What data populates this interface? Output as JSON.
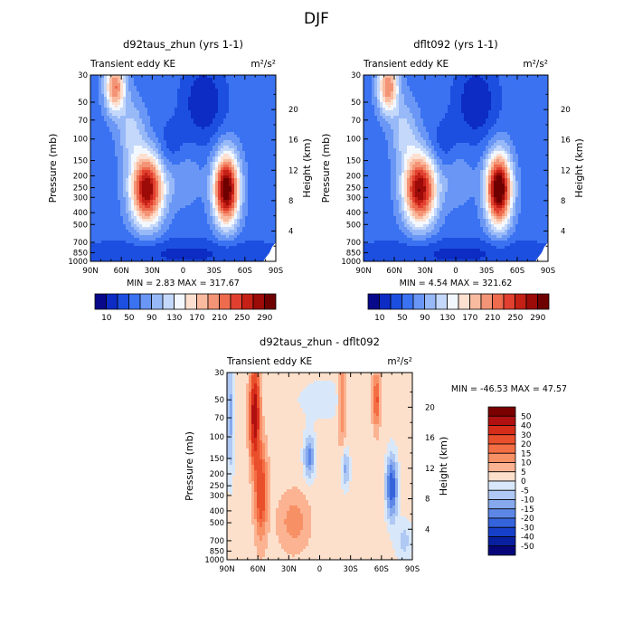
{
  "title": "DJF",
  "panels": [
    {
      "title": "d92taus_zhun (yrs 1-1)",
      "subtitle_left": "Transient eddy KE",
      "units": "m²/s²",
      "stats": "MIN =   2.83   MAX = 317.67"
    },
    {
      "title": "dflt092 (yrs 1-1)",
      "subtitle_left": "Transient eddy KE",
      "units": "m²/s²",
      "stats": "MIN =   4.54   MAX = 321.62"
    },
    {
      "title": "d92taus_zhun - dflt092",
      "subtitle_left": "Transient eddy KE",
      "units": "m²/s²",
      "stats": "MIN = -46.53   MAX =  47.57"
    }
  ],
  "axes": {
    "ylabel_left": "Pressure (mb)",
    "ylabel_right": "Height (km)",
    "x_ticks": [
      "90N",
      "60N",
      "30N",
      "0",
      "30S",
      "60S",
      "90S"
    ],
    "p_ticks": [
      "30",
      "50",
      "70",
      "100",
      "150",
      "200",
      "250",
      "300",
      "400",
      "500",
      "700",
      "850",
      "1000"
    ],
    "h_ticks": [
      "4",
      "8",
      "12",
      "16",
      "20"
    ]
  },
  "colorbars": {
    "ke_labels": [
      "10",
      "50",
      "90",
      "130",
      "170",
      "210",
      "250",
      "290"
    ],
    "ke_colors": [
      "#08088a",
      "#0c2cc4",
      "#1c4fe0",
      "#3a72f2",
      "#6a97f5",
      "#98b9f7",
      "#c4d8fb",
      "#f3f8ff",
      "#fde0d0",
      "#f9bba0",
      "#f49476",
      "#ee6b4e",
      "#e14030",
      "#c42016",
      "#9c0b08",
      "#6e0000"
    ],
    "diff_labels": [
      "50",
      "40",
      "30",
      "20",
      "15",
      "10",
      "5",
      "0",
      "-5",
      "-10",
      "-15",
      "-20",
      "-30",
      "-40",
      "-50"
    ],
    "diff_colors": [
      "#7a0000",
      "#b01010",
      "#d62c1a",
      "#ea4f2c",
      "#f46e45",
      "#f89066",
      "#fbb392",
      "#fde0cc",
      "#d8e8fa",
      "#afc9f4",
      "#86a9ee",
      "#5d87e6",
      "#3563dc",
      "#1640c8",
      "#0820a0",
      "#06067a"
    ]
  },
  "chart_data": [
    {
      "type": "heatmap",
      "title": "d92taus_zhun (yrs 1-1)",
      "subtitle": "Transient eddy KE",
      "units": "m²/s²",
      "xlabel": "",
      "ylabel": "Pressure (mb)",
      "y2label": "Height (km)",
      "x_range": [
        "90N",
        "90S"
      ],
      "ylim": [
        1000,
        30
      ],
      "y_scale": "log",
      "levels": [
        10,
        30,
        50,
        70,
        90,
        110,
        130,
        150,
        170,
        190,
        210,
        230,
        250,
        270,
        290
      ],
      "min": 2.83,
      "max": 317.67,
      "features": [
        {
          "lat": 35,
          "p": 280,
          "value": 290
        },
        {
          "lat": -42,
          "p": 280,
          "value": 317
        },
        {
          "lat": 65,
          "p": 30,
          "value": 170
        }
      ]
    },
    {
      "type": "heatmap",
      "title": "dflt092 (yrs 1-1)",
      "subtitle": "Transient eddy KE",
      "units": "m²/s²",
      "xlabel": "",
      "ylabel": "Pressure (mb)",
      "y2label": "Height (km)",
      "x_range": [
        "90N",
        "90S"
      ],
      "ylim": [
        1000,
        30
      ],
      "y_scale": "log",
      "levels": [
        10,
        30,
        50,
        70,
        90,
        110,
        130,
        150,
        170,
        190,
        210,
        230,
        250,
        270,
        290
      ],
      "min": 4.54,
      "max": 321.62,
      "features": [
        {
          "lat": 35,
          "p": 280,
          "value": 280
        },
        {
          "lat": -42,
          "p": 280,
          "value": 321
        },
        {
          "lat": 65,
          "p": 30,
          "value": 150
        }
      ]
    },
    {
      "type": "heatmap",
      "title": "d92taus_zhun - dflt092",
      "subtitle": "Transient eddy KE",
      "units": "m²/s²",
      "xlabel": "",
      "ylabel": "Pressure (mb)",
      "y2label": "Height (km)",
      "x_range": [
        "90N",
        "90S"
      ],
      "ylim": [
        1000,
        30
      ],
      "y_scale": "log",
      "levels": [
        -50,
        -40,
        -30,
        -20,
        -15,
        -10,
        -5,
        0,
        5,
        10,
        15,
        20,
        30,
        40,
        50
      ],
      "min": -46.53,
      "max": 47.57,
      "features": [
        {
          "lat": 63,
          "p": 40,
          "value": 47
        },
        {
          "lat": 58,
          "p": 250,
          "value": 25
        },
        {
          "lat": -20,
          "p": 50,
          "value": 10
        },
        {
          "lat": -55,
          "p": 50,
          "value": 20
        },
        {
          "lat": 88,
          "p": 50,
          "value": -15
        },
        {
          "lat": 10,
          "p": 150,
          "value": -20
        },
        {
          "lat": -25,
          "p": 200,
          "value": -15
        },
        {
          "lat": -70,
          "p": 300,
          "value": -30
        },
        {
          "lat": -80,
          "p": 800,
          "value": -10
        }
      ]
    }
  ]
}
